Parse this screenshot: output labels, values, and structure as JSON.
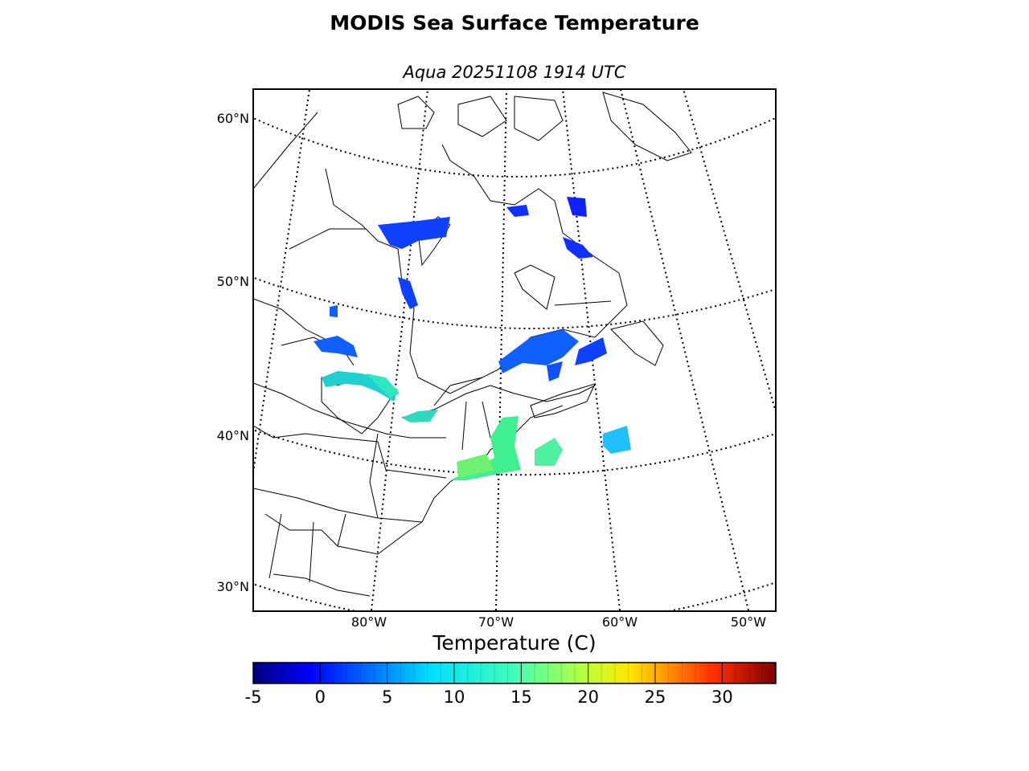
{
  "title": "MODIS Sea Surface Temperature",
  "subtitle": "Aqua 20251108 1914 UTC",
  "map": {
    "projection": "conic",
    "lat_labels": [
      "60°N",
      "50°N",
      "40°N",
      "30°N"
    ],
    "lon_labels": [
      "80°W",
      "70°W",
      "60°W",
      "50°W"
    ],
    "graticule_style": "dotted"
  },
  "colorbar": {
    "label": "Temperature (C)",
    "min": -5,
    "max": 34,
    "ticks": [
      "-5",
      "0",
      "5",
      "10",
      "15",
      "20",
      "25",
      "30"
    ],
    "colormap": "jet"
  },
  "colors": {
    "cold": "#0000ff",
    "mid": "#00ffb0",
    "warm": "#80ff60"
  }
}
